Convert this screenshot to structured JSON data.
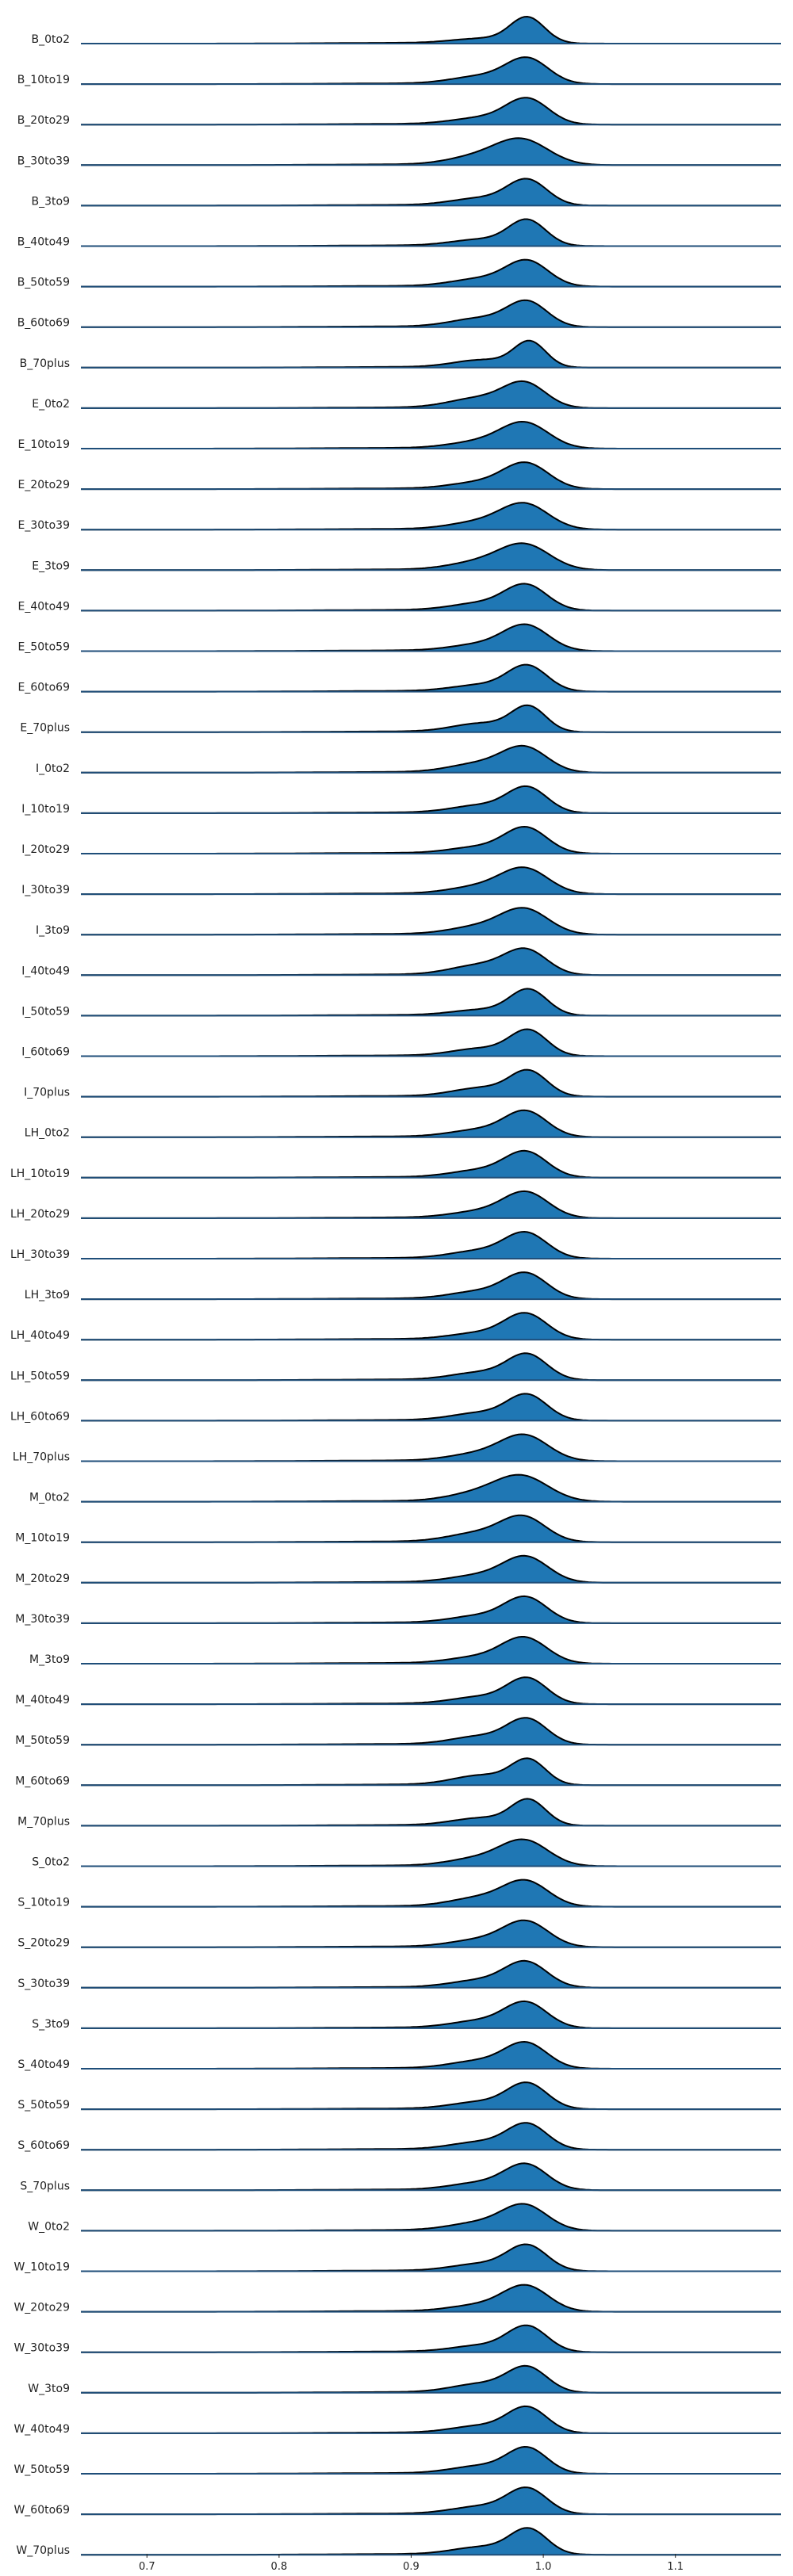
{
  "chart_data": {
    "type": "ridgeline",
    "xlim": [
      0.65,
      1.18
    ],
    "xticks": [
      0.7,
      0.8,
      0.9,
      1.0,
      1.1
    ],
    "xtick_labels": [
      "0.7",
      "0.8",
      "0.9",
      "1.0",
      "1.1"
    ],
    "fill_color": "#1f77b4",
    "line_color": "#000000",
    "baseline_color": "#1f4e79",
    "grid": false,
    "legend": "none",
    "series": [
      {
        "name": "B_0to2",
        "peak": 0.988,
        "w": 0.013,
        "tail": 0.18
      },
      {
        "name": "B_10to19",
        "peak": 0.988,
        "w": 0.016,
        "tail": 0.3
      },
      {
        "name": "B_20to29",
        "peak": 0.988,
        "w": 0.016,
        "tail": 0.25
      },
      {
        "name": "B_30to39",
        "peak": 0.984,
        "w": 0.02,
        "tail": 0.3
      },
      {
        "name": "B_3to9",
        "peak": 0.988,
        "w": 0.015,
        "tail": 0.28
      },
      {
        "name": "B_40to49",
        "peak": 0.988,
        "w": 0.014,
        "tail": 0.25
      },
      {
        "name": "B_50to59",
        "peak": 0.988,
        "w": 0.016,
        "tail": 0.3
      },
      {
        "name": "B_60to69",
        "peak": 0.988,
        "w": 0.015,
        "tail": 0.35
      },
      {
        "name": "B_70plus",
        "peak": 0.99,
        "w": 0.012,
        "tail": 0.3
      },
      {
        "name": "E_0to2",
        "peak": 0.986,
        "w": 0.016,
        "tail": 0.4
      },
      {
        "name": "E_10to19",
        "peak": 0.986,
        "w": 0.018,
        "tail": 0.25
      },
      {
        "name": "E_20to29",
        "peak": 0.987,
        "w": 0.017,
        "tail": 0.25
      },
      {
        "name": "E_30to39",
        "peak": 0.986,
        "w": 0.018,
        "tail": 0.28
      },
      {
        "name": "E_3to9",
        "peak": 0.986,
        "w": 0.019,
        "tail": 0.3
      },
      {
        "name": "E_40to49",
        "peak": 0.987,
        "w": 0.016,
        "tail": 0.28
      },
      {
        "name": "E_50to59",
        "peak": 0.987,
        "w": 0.017,
        "tail": 0.25
      },
      {
        "name": "E_60to69",
        "peak": 0.988,
        "w": 0.015,
        "tail": 0.25
      },
      {
        "name": "E_70plus",
        "peak": 0.989,
        "w": 0.013,
        "tail": 0.35
      },
      {
        "name": "I_0to2",
        "peak": 0.986,
        "w": 0.017,
        "tail": 0.35
      },
      {
        "name": "I_10to19",
        "peak": 0.988,
        "w": 0.015,
        "tail": 0.3
      },
      {
        "name": "I_20to29",
        "peak": 0.987,
        "w": 0.016,
        "tail": 0.25
      },
      {
        "name": "I_30to39",
        "peak": 0.986,
        "w": 0.018,
        "tail": 0.28
      },
      {
        "name": "I_3to9",
        "peak": 0.986,
        "w": 0.018,
        "tail": 0.3
      },
      {
        "name": "I_40to49",
        "peak": 0.987,
        "w": 0.016,
        "tail": 0.4
      },
      {
        "name": "I_50to59",
        "peak": 0.989,
        "w": 0.014,
        "tail": 0.22
      },
      {
        "name": "I_60to69",
        "peak": 0.989,
        "w": 0.014,
        "tail": 0.3
      },
      {
        "name": "I_70plus",
        "peak": 0.989,
        "w": 0.014,
        "tail": 0.35
      },
      {
        "name": "LH_0to2",
        "peak": 0.987,
        "w": 0.016,
        "tail": 0.28
      },
      {
        "name": "LH_10to19",
        "peak": 0.987,
        "w": 0.016,
        "tail": 0.28
      },
      {
        "name": "LH_20to29",
        "peak": 0.987,
        "w": 0.017,
        "tail": 0.25
      },
      {
        "name": "LH_30to39",
        "peak": 0.987,
        "w": 0.016,
        "tail": 0.3
      },
      {
        "name": "LH_3to9",
        "peak": 0.987,
        "w": 0.016,
        "tail": 0.3
      },
      {
        "name": "LH_40to49",
        "peak": 0.987,
        "w": 0.016,
        "tail": 0.25
      },
      {
        "name": "LH_50to59",
        "peak": 0.988,
        "w": 0.015,
        "tail": 0.3
      },
      {
        "name": "LH_60to69",
        "peak": 0.988,
        "w": 0.015,
        "tail": 0.3
      },
      {
        "name": "LH_70plus",
        "peak": 0.986,
        "w": 0.018,
        "tail": 0.28
      },
      {
        "name": "M_0to2",
        "peak": 0.984,
        "w": 0.02,
        "tail": 0.3
      },
      {
        "name": "M_10to19",
        "peak": 0.985,
        "w": 0.017,
        "tail": 0.35
      },
      {
        "name": "M_20to29",
        "peak": 0.987,
        "w": 0.017,
        "tail": 0.28
      },
      {
        "name": "M_30to39",
        "peak": 0.987,
        "w": 0.016,
        "tail": 0.28
      },
      {
        "name": "M_3to9",
        "peak": 0.986,
        "w": 0.017,
        "tail": 0.25
      },
      {
        "name": "M_40to49",
        "peak": 0.988,
        "w": 0.015,
        "tail": 0.28
      },
      {
        "name": "M_50to59",
        "peak": 0.988,
        "w": 0.015,
        "tail": 0.33
      },
      {
        "name": "M_60to69",
        "peak": 0.989,
        "w": 0.013,
        "tail": 0.4
      },
      {
        "name": "M_70plus",
        "peak": 0.989,
        "w": 0.013,
        "tail": 0.3
      },
      {
        "name": "S_0to2",
        "peak": 0.986,
        "w": 0.018,
        "tail": 0.3
      },
      {
        "name": "S_10to19",
        "peak": 0.987,
        "w": 0.017,
        "tail": 0.35
      },
      {
        "name": "S_20to29",
        "peak": 0.987,
        "w": 0.017,
        "tail": 0.28
      },
      {
        "name": "S_30to39",
        "peak": 0.987,
        "w": 0.016,
        "tail": 0.28
      },
      {
        "name": "S_3to9",
        "peak": 0.987,
        "w": 0.016,
        "tail": 0.28
      },
      {
        "name": "S_40to49",
        "peak": 0.987,
        "w": 0.016,
        "tail": 0.3
      },
      {
        "name": "S_50to59",
        "peak": 0.988,
        "w": 0.015,
        "tail": 0.28
      },
      {
        "name": "S_60to69",
        "peak": 0.988,
        "w": 0.015,
        "tail": 0.3
      },
      {
        "name": "S_70plus",
        "peak": 0.987,
        "w": 0.016,
        "tail": 0.28
      },
      {
        "name": "W_0to2",
        "peak": 0.986,
        "w": 0.017,
        "tail": 0.3
      },
      {
        "name": "W_10to19",
        "peak": 0.988,
        "w": 0.015,
        "tail": 0.28
      },
      {
        "name": "W_20to29",
        "peak": 0.987,
        "w": 0.017,
        "tail": 0.25
      },
      {
        "name": "W_30to39",
        "peak": 0.988,
        "w": 0.015,
        "tail": 0.25
      },
      {
        "name": "W_3to9",
        "peak": 0.988,
        "w": 0.015,
        "tail": 0.35
      },
      {
        "name": "W_40to49",
        "peak": 0.988,
        "w": 0.015,
        "tail": 0.28
      },
      {
        "name": "W_50to59",
        "peak": 0.988,
        "w": 0.015,
        "tail": 0.3
      },
      {
        "name": "W_60to69",
        "peak": 0.988,
        "w": 0.015,
        "tail": 0.3
      },
      {
        "name": "W_70plus",
        "peak": 0.989,
        "w": 0.014,
        "tail": 0.3
      }
    ]
  }
}
